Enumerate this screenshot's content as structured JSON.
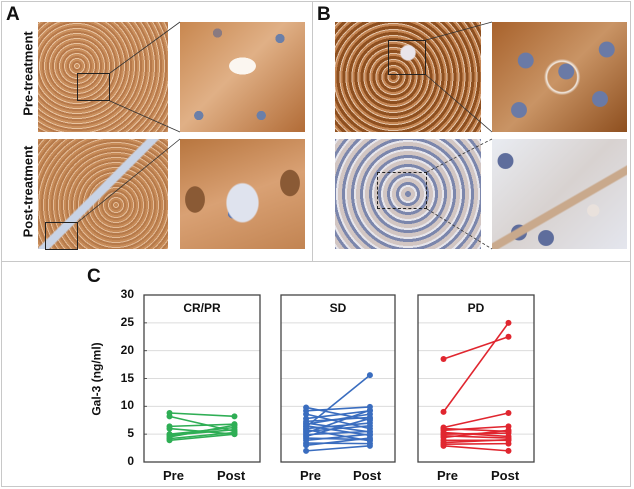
{
  "figure": {
    "panels": {
      "A": {
        "label": "A",
        "row_labels": [
          "Pre-treatment",
          "Post-treatment"
        ],
        "description": "Immunohistochemistry Gal-3 staining, low and high magnification",
        "stain_colors": {
          "strong_brown": "#b5773f",
          "tissue_light": "#d8a57a",
          "nuclei": "#6b7fa8"
        }
      },
      "B": {
        "label": "B",
        "description": "Immunohistochemistry, strong (top) vs weak (bottom) staining",
        "stain_colors": {
          "strong_brown": "#9c5a26",
          "weak_tissue": "#cfc4c6",
          "nuclei": "#6a7aa6"
        }
      },
      "C": {
        "label": "C"
      }
    }
  },
  "chart_data": {
    "type": "line",
    "title": "",
    "ylabel": "Gal-3 (ng/ml)",
    "ylim": [
      0,
      30
    ],
    "yticks": [
      0,
      5,
      10,
      15,
      20,
      25,
      30
    ],
    "grid": true,
    "x": [
      "Pre",
      "Post"
    ],
    "subplots": [
      {
        "title": "CR/PR",
        "color": "#2fae55",
        "pairs": [
          [
            8.8,
            8.2
          ],
          [
            8.2,
            5.5
          ],
          [
            6.4,
            6.8
          ],
          [
            6.0,
            5.0
          ],
          [
            5.0,
            6.2
          ],
          [
            4.8,
            5.8
          ],
          [
            4.2,
            5.3
          ],
          [
            3.9,
            5.0
          ],
          [
            4.5,
            6.6
          ]
        ]
      },
      {
        "title": "SD",
        "color": "#3a6dbf",
        "pairs": [
          [
            9.8,
            7.5
          ],
          [
            9.2,
            9.9
          ],
          [
            8.6,
            6.0
          ],
          [
            7.8,
            9.2
          ],
          [
            7.3,
            8.0
          ],
          [
            7.0,
            5.4
          ],
          [
            6.8,
            8.6
          ],
          [
            6.5,
            4.8
          ],
          [
            6.3,
            15.6
          ],
          [
            6.0,
            7.0
          ],
          [
            5.8,
            3.8
          ],
          [
            5.5,
            6.5
          ],
          [
            5.2,
            9.3
          ],
          [
            4.9,
            5.5
          ],
          [
            4.6,
            7.8
          ],
          [
            4.3,
            4.0
          ],
          [
            3.9,
            5.0
          ],
          [
            3.4,
            3.3
          ],
          [
            3.0,
            4.3
          ],
          [
            2.0,
            2.9
          ]
        ]
      },
      {
        "title": "PD",
        "color": "#e0262f",
        "pairs": [
          [
            18.5,
            22.5
          ],
          [
            9.0,
            25.0
          ],
          [
            6.2,
            8.8
          ],
          [
            6.0,
            5.5
          ],
          [
            5.7,
            6.4
          ],
          [
            5.3,
            4.6
          ],
          [
            5.0,
            5.2
          ],
          [
            4.7,
            4.3
          ],
          [
            4.4,
            5.7
          ],
          [
            3.9,
            3.9
          ],
          [
            3.5,
            4.0
          ],
          [
            3.2,
            3.3
          ],
          [
            2.9,
            2.0
          ]
        ]
      }
    ]
  }
}
